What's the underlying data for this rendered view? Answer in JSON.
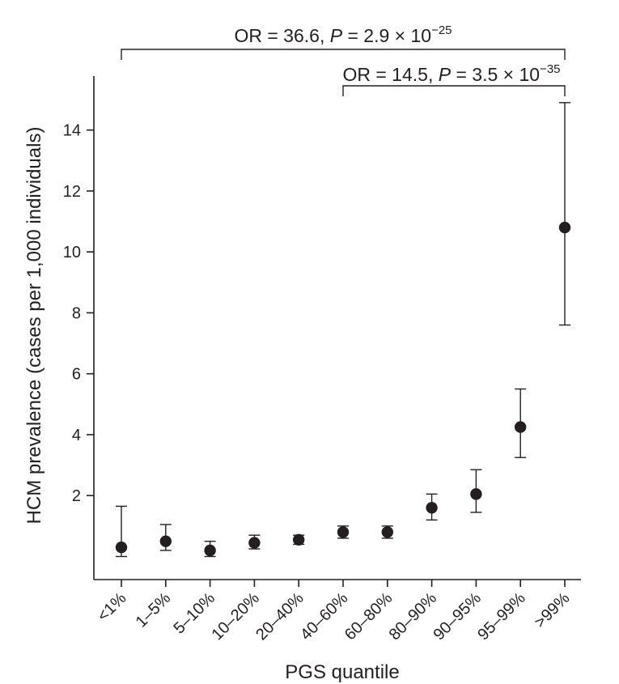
{
  "chart_data": {
    "type": "scatter",
    "title": "",
    "xlabel": "PGS quantile",
    "ylabel": "HCM prevalence (cases per 1,000 individuals)",
    "ylim": [
      -1,
      16.4
    ],
    "yticks": [
      2,
      4,
      6,
      8,
      10,
      12,
      14
    ],
    "grid": false,
    "categories": [
      "<1%",
      "1–5%",
      "5–10%",
      "10–20%",
      "20–40%",
      "40–60%",
      "60–80%",
      "80–90%",
      "90–95%",
      "95–99%",
      ">99%"
    ],
    "series": [
      {
        "values": [
          0.3,
          0.5,
          0.2,
          0.45,
          0.55,
          0.8,
          0.8,
          1.6,
          2.05,
          4.25,
          10.8
        ],
        "lower": [
          0.0,
          0.2,
          0.0,
          0.25,
          0.4,
          0.6,
          0.6,
          1.2,
          1.45,
          3.25,
          7.6
        ],
        "upper": [
          1.65,
          1.05,
          0.5,
          0.7,
          0.7,
          1.0,
          1.0,
          2.05,
          2.85,
          5.5,
          14.9
        ]
      }
    ],
    "annotations": [
      {
        "from": "<1%",
        "to": ">99%",
        "or_text": "OR = 36.6, ",
        "p_symbol": "P",
        "p_text": " = 2.9 × 10",
        "p_exponent": "−25"
      },
      {
        "from": "40–60%",
        "to": ">99%",
        "or_text": "OR = 14.5, ",
        "p_symbol": "P",
        "p_text": " = 3.5 × 10",
        "p_exponent": "−35"
      }
    ]
  }
}
